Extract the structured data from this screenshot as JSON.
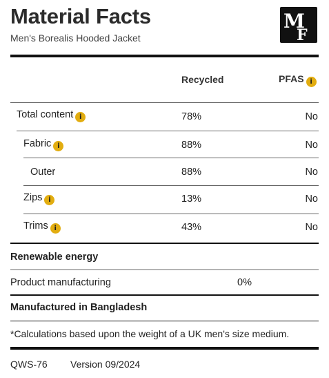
{
  "header": {
    "title": "Material Facts",
    "subtitle": "Men's Borealis Hooded Jacket",
    "logo_text": "MF"
  },
  "columns": {
    "recycled": "Recycled",
    "pfas": "PFAS"
  },
  "info_glyph": "i",
  "materials": [
    {
      "label": "Total content",
      "recycled": "78%",
      "pfas": "No",
      "info": true
    },
    {
      "label": "Fabric",
      "recycled": "88%",
      "pfas": "No",
      "info": true
    },
    {
      "label": "Outer",
      "recycled": "88%",
      "pfas": "No",
      "info": false
    },
    {
      "label": "Zips",
      "recycled": "13%",
      "pfas": "No",
      "info": true
    },
    {
      "label": "Trims",
      "recycled": "43%",
      "pfas": "No",
      "info": true
    }
  ],
  "renewable": {
    "heading": "Renewable energy",
    "label": "Product manufacturing",
    "value": "0%"
  },
  "origin": "Manufactured in Bangladesh",
  "footnote": "*Calculations based upon the weight of a UK men's size medium.",
  "footer": {
    "code": "QWS-76",
    "version": "Version 09/2024"
  },
  "colors": {
    "info_badge": "#e2ad10",
    "rules": "#111111"
  }
}
